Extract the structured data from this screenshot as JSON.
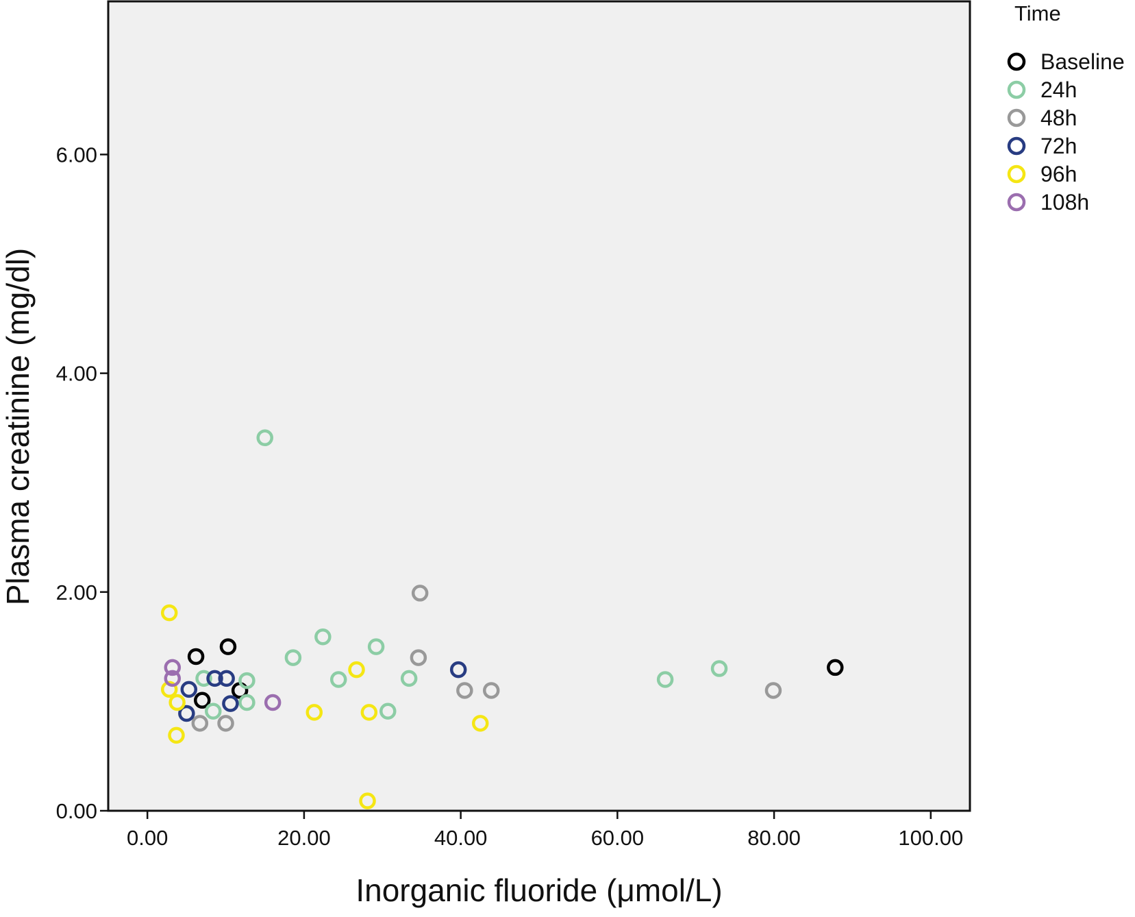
{
  "chart_data": {
    "type": "scatter",
    "title": "",
    "xlabel": "Inorganic fluoride (μmol/L)",
    "ylabel": "Plasma creatinine (mg/dl)",
    "xlim": [
      -5,
      105
    ],
    "ylim": [
      0,
      7.4
    ],
    "x_ticks": [
      0,
      20,
      40,
      60,
      80,
      100
    ],
    "x_tick_labels": [
      "0.00",
      "20.00",
      "40.00",
      "60.00",
      "80.00",
      "100.00"
    ],
    "y_ticks": [
      0,
      2,
      4,
      6
    ],
    "y_tick_labels": [
      "0.00",
      "2.00",
      "4.00",
      "6.00"
    ],
    "grid": false,
    "plot_background": "#f0f0f0",
    "marker": "open-circle",
    "legend": {
      "title": "Time",
      "placement": "outside-right-top"
    },
    "series": [
      {
        "name": "Baseline",
        "color": "#000000",
        "points": [
          [
            6.2,
            1.41
          ],
          [
            7.0,
            1.01
          ],
          [
            10.3,
            1.5
          ],
          [
            11.8,
            1.1
          ],
          [
            87.8,
            1.31
          ]
        ]
      },
      {
        "name": "24h",
        "color": "#8ccda5",
        "points": [
          [
            15.0,
            3.41
          ],
          [
            7.2,
            1.21
          ],
          [
            8.4,
            0.91
          ],
          [
            12.7,
            1.19
          ],
          [
            12.7,
            0.99
          ],
          [
            18.6,
            1.4
          ],
          [
            22.4,
            1.59
          ],
          [
            24.4,
            1.2
          ],
          [
            29.2,
            1.5
          ],
          [
            30.7,
            0.91
          ],
          [
            33.4,
            1.21
          ],
          [
            66.1,
            1.2
          ],
          [
            73.0,
            1.3
          ]
        ]
      },
      {
        "name": "48h",
        "color": "#999999",
        "points": [
          [
            6.7,
            0.8
          ],
          [
            10.0,
            0.8
          ],
          [
            34.6,
            1.4
          ],
          [
            34.8,
            1.99
          ],
          [
            40.5,
            1.1
          ],
          [
            43.9,
            1.1
          ],
          [
            79.9,
            1.1
          ]
        ]
      },
      {
        "name": "72h",
        "color": "#283c82",
        "points": [
          [
            5.3,
            1.11
          ],
          [
            5.0,
            0.89
          ],
          [
            8.6,
            1.21
          ],
          [
            10.1,
            1.21
          ],
          [
            10.6,
            0.98
          ],
          [
            39.7,
            1.29
          ]
        ]
      },
      {
        "name": "96h",
        "color": "#f5e614",
        "points": [
          [
            2.8,
            1.81
          ],
          [
            2.8,
            1.11
          ],
          [
            3.8,
            0.99
          ],
          [
            3.7,
            0.69
          ],
          [
            21.3,
            0.9
          ],
          [
            26.7,
            1.29
          ],
          [
            28.1,
            0.09
          ],
          [
            28.3,
            0.9
          ],
          [
            42.5,
            0.8
          ]
        ]
      },
      {
        "name": "108h",
        "color": "#9b6eaf",
        "points": [
          [
            3.2,
            1.31
          ],
          [
            3.2,
            1.21
          ],
          [
            16.0,
            0.99
          ]
        ]
      }
    ]
  }
}
